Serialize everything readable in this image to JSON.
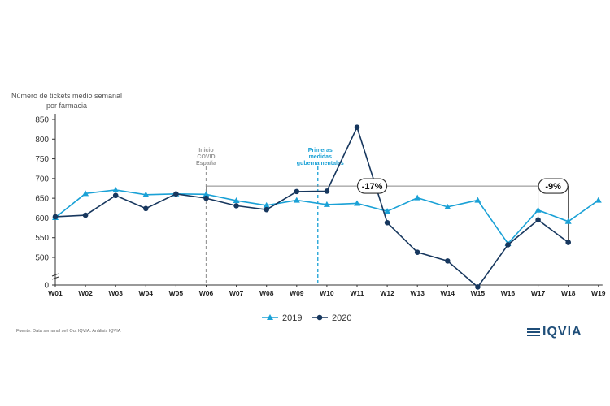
{
  "chart_data": {
    "type": "line",
    "ylabel": "Número de tickets medio semanal por farmacia",
    "categories": [
      "W01",
      "W02",
      "W03",
      "W04",
      "W05",
      "W06",
      "W07",
      "W08",
      "W09",
      "W10",
      "W11",
      "W12",
      "W13",
      "W14",
      "W15",
      "W16",
      "W17",
      "W18",
      "W19"
    ],
    "y_ticks": [
      "850",
      "800",
      "750",
      "700",
      "650",
      "600",
      "550",
      "500",
      "0"
    ],
    "y_break": true,
    "series": [
      {
        "name": "2019",
        "color": "#1aa1d6",
        "marker": "triangle",
        "values": [
          601,
          662,
          671,
          659,
          661,
          660,
          644,
          632,
          645,
          634,
          637,
          617,
          651,
          628,
          645,
          535,
          620,
          591,
          645
        ]
      },
      {
        "name": "2020",
        "color": "#17375e",
        "marker": "circle",
        "values": [
          603,
          607,
          657,
          624,
          661,
          650,
          631,
          621,
          667,
          668,
          830,
          588,
          513,
          491,
          425,
          532,
          595,
          538,
          null
        ]
      }
    ],
    "annotations": {
      "covid": "Inicio COVID España",
      "measures": "Primeras medidas gubernamentales",
      "drop1": "-17%",
      "drop2": "-9%"
    },
    "legend_position": "bottom"
  },
  "source": "Fuente: Data semanal sell Out IQVIA. Análisis IQVIA",
  "logo": "IQVIA"
}
